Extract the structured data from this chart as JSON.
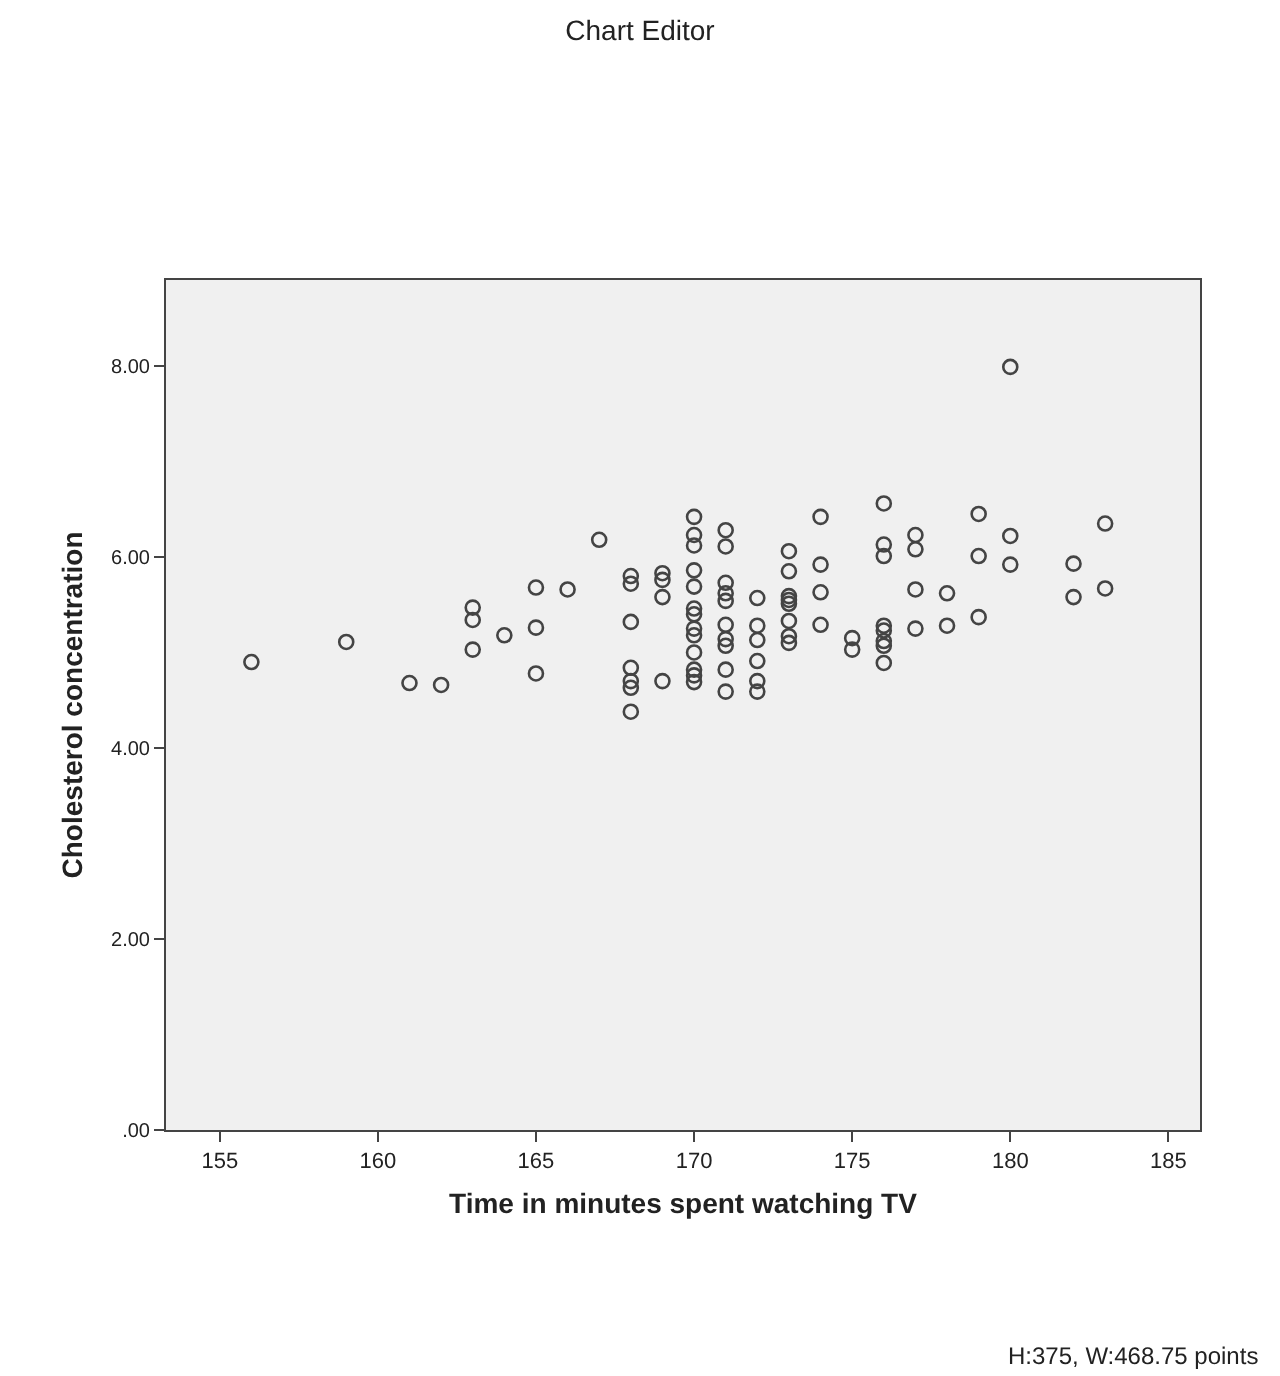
{
  "chart_data": {
    "type": "scatter",
    "title": "Chart Editor",
    "xlabel": "Time in minutes spent watching TV",
    "ylabel": "Cholesterol concentration",
    "annotations": [
      "H:375, W:468.75 points"
    ],
    "x": [
      156,
      159,
      161,
      162,
      163,
      163,
      163,
      164,
      165,
      165,
      165,
      166,
      167,
      168,
      168,
      168,
      168,
      168,
      168,
      168,
      169,
      169,
      169,
      169,
      170,
      170,
      170,
      170,
      170,
      170,
      170,
      170,
      170,
      170,
      170,
      170,
      170,
      171,
      171,
      171,
      171,
      171,
      171,
      171,
      171,
      171,
      171,
      172,
      172,
      172,
      172,
      172,
      172,
      173,
      173,
      173,
      173,
      173,
      173,
      173,
      173,
      174,
      174,
      174,
      174,
      175,
      175,
      176,
      176,
      176,
      176,
      176,
      176,
      176,
      176,
      177,
      177,
      177,
      177,
      178,
      178,
      179,
      179,
      179,
      180,
      180,
      180,
      182,
      182,
      183,
      183
    ],
    "series": [
      {
        "color": "#444444",
        "values": [
          4.9,
          5.11,
          4.68,
          4.66,
          5.47,
          5.34,
          5.03,
          5.18,
          5.68,
          5.26,
          4.78,
          5.66,
          6.18,
          5.8,
          5.72,
          5.32,
          4.84,
          4.7,
          4.63,
          4.38,
          5.83,
          5.76,
          5.58,
          4.7,
          6.42,
          6.23,
          6.12,
          5.86,
          5.69,
          5.46,
          5.4,
          5.25,
          5.18,
          5.0,
          4.82,
          4.76,
          4.69,
          6.28,
          6.11,
          5.73,
          5.62,
          5.54,
          5.29,
          5.14,
          5.07,
          4.82,
          4.59,
          5.57,
          5.28,
          5.13,
          4.91,
          4.7,
          4.59,
          6.06,
          5.85,
          5.59,
          5.55,
          5.51,
          5.33,
          5.17,
          5.1,
          6.42,
          5.92,
          5.63,
          5.29,
          5.15,
          5.03,
          6.56,
          6.13,
          6.01,
          5.28,
          5.23,
          5.12,
          5.07,
          4.89,
          6.23,
          6.08,
          5.66,
          5.25,
          5.62,
          5.28,
          6.45,
          6.01,
          5.37,
          7.99,
          6.22,
          5.92,
          5.93,
          5.58,
          6.35,
          5.67
        ]
      }
    ],
    "xlim": [
      153.3,
      186
    ],
    "xticks": [
      155,
      160,
      165,
      170,
      175,
      180,
      185
    ],
    "ylim": [
      0,
      8.9
    ],
    "yticks": [
      {
        "value": 0,
        "label": ".00"
      },
      {
        "value": 2,
        "label": "2.00"
      },
      {
        "value": 4,
        "label": "4.00"
      },
      {
        "value": 6,
        "label": "6.00"
      },
      {
        "value": 8,
        "label": "8.00"
      }
    ],
    "marker": "circle"
  }
}
